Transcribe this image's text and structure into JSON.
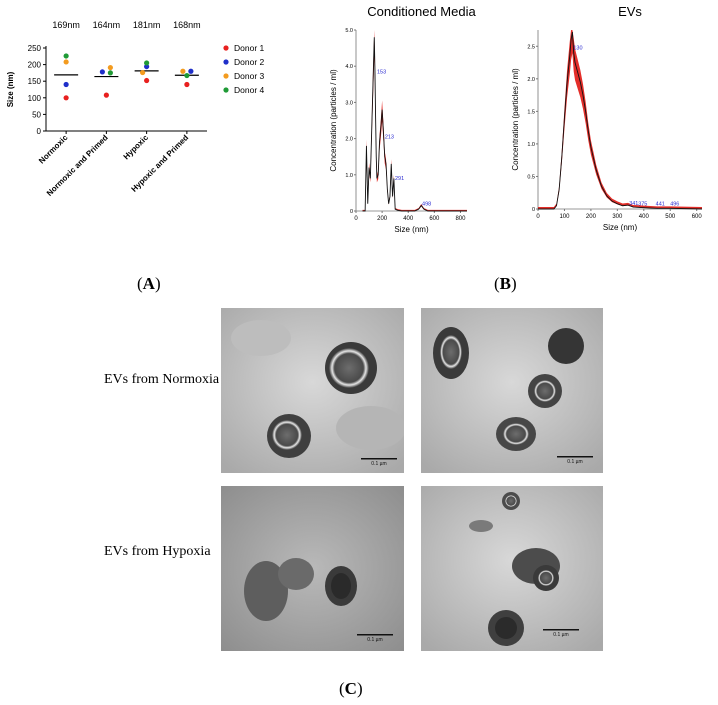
{
  "panel_labels": {
    "a": "A",
    "b": "B",
    "c": "C"
  },
  "chart_data": [
    {
      "type": "scatter",
      "title": "",
      "xlabel": "",
      "ylabel": "Size (nm)",
      "ylim": [
        0,
        250
      ],
      "yticks": [
        0,
        50,
        100,
        150,
        200,
        250
      ],
      "categories": [
        "Normoxic",
        "Normoxic and Primed",
        "Hypoxic",
        "Hypoxic and Primed"
      ],
      "mean_labels": [
        "169nm",
        "164nm",
        "181nm",
        "168nm"
      ],
      "means": [
        169,
        164,
        181,
        168
      ],
      "legend_position": "right",
      "series": [
        {
          "name": "Donor 1",
          "color": "#e8201f",
          "values": [
            100,
            108,
            152,
            140
          ]
        },
        {
          "name": "Donor 2",
          "color": "#1f2fc9",
          "values": [
            140,
            178,
            194,
            180
          ]
        },
        {
          "name": "Donor 3",
          "color": "#f39b1f",
          "values": [
            208,
            191,
            176,
            180
          ]
        },
        {
          "name": "Donor 4",
          "color": "#1f9a36",
          "values": [
            226,
            175,
            205,
            167
          ]
        }
      ]
    },
    {
      "type": "line",
      "title": "Conditioned Media",
      "xlabel": "Size (nm)",
      "ylabel": "Concentration (particles / ml)",
      "xlim": [
        0,
        850
      ],
      "xticks": [
        0,
        200,
        400,
        600,
        800
      ],
      "ylim": [
        0,
        5.0
      ],
      "yticks": [
        "0",
        "1.0",
        "2.0",
        "3.0",
        "4.0",
        "5.0"
      ],
      "peak_labels": [
        {
          "text": "153",
          "x": 153,
          "y": 3.8
        },
        {
          "text": "213",
          "x": 213,
          "y": 2.0
        },
        {
          "text": "291",
          "x": 291,
          "y": 0.85
        },
        {
          "text": "498",
          "x": 498,
          "y": 0.15
        }
      ],
      "x": [
        50,
        70,
        80,
        90,
        100,
        110,
        120,
        130,
        140,
        145,
        150,
        155,
        160,
        170,
        180,
        190,
        200,
        210,
        220,
        230,
        240,
        250,
        260,
        270,
        280,
        290,
        300,
        320,
        350,
        400,
        450,
        480,
        500,
        520,
        550,
        600,
        700,
        850
      ],
      "y": [
        0,
        0,
        1.8,
        0.2,
        1.2,
        0.9,
        2.2,
        3.5,
        4.8,
        3.9,
        2.6,
        1.5,
        0.9,
        1.0,
        1.9,
        2.3,
        2.8,
        2.2,
        1.5,
        1.3,
        0.6,
        0.2,
        0.4,
        1.3,
        0.4,
        0.9,
        0.05,
        0.02,
        0.0,
        0.0,
        0.0,
        0.05,
        0.15,
        0.05,
        0.0,
        0.0,
        0.0,
        0.0
      ]
    },
    {
      "type": "line",
      "title": "EVs",
      "xlabel": "Size (nm)",
      "ylabel": "Concentration (particles / ml)",
      "xlim": [
        0,
        620
      ],
      "xticks": [
        0,
        100,
        200,
        300,
        400,
        500,
        600
      ],
      "ylim": [
        0,
        2.75
      ],
      "yticks": [
        "0",
        "0.5",
        "1.0",
        "1.5",
        "2.0",
        "2.5"
      ],
      "peak_labels": [
        {
          "text": "130",
          "x": 130,
          "y": 2.45
        },
        {
          "text": "341",
          "x": 341,
          "y": 0.06
        },
        {
          "text": "375",
          "x": 375,
          "y": 0.05
        },
        {
          "text": "441",
          "x": 441,
          "y": 0.05
        },
        {
          "text": "496",
          "x": 496,
          "y": 0.05
        }
      ],
      "x": [
        0,
        60,
        70,
        80,
        90,
        100,
        110,
        120,
        125,
        130,
        135,
        140,
        150,
        160,
        170,
        180,
        190,
        200,
        220,
        240,
        260,
        280,
        300,
        320,
        340,
        360,
        400,
        450,
        500,
        620
      ],
      "y": [
        0,
        0,
        0.05,
        0.3,
        0.8,
        1.4,
        1.95,
        2.35,
        2.6,
        2.72,
        2.4,
        2.25,
        2.1,
        1.95,
        1.75,
        1.5,
        1.2,
        0.95,
        0.6,
        0.35,
        0.2,
        0.12,
        0.08,
        0.05,
        0.06,
        0.03,
        0.02,
        0.01,
        0.01,
        0
      ]
    }
  ],
  "micrographs": {
    "row_labels": [
      "EVs from Normoxia",
      "EVs from Hypoxia"
    ],
    "scale_bar": "0.1 µm"
  }
}
